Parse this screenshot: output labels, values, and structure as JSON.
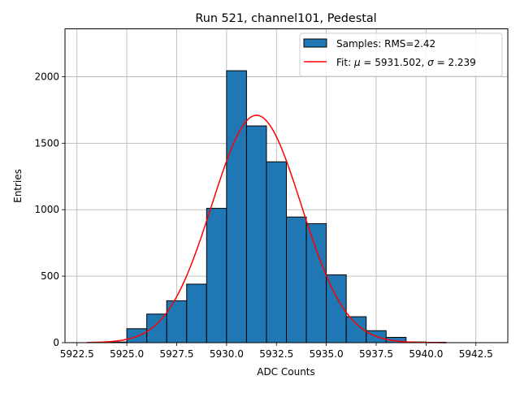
{
  "chart_data": {
    "type": "bar",
    "title": "Run 521, channel101, Pedestal",
    "xlabel": "ADC Counts",
    "ylabel": "Entries",
    "xlim": [
      5921.9,
      5944.1
    ],
    "ylim": [
      0,
      2360
    ],
    "xticks": [
      5922.5,
      5925.0,
      5927.5,
      5930.0,
      5932.5,
      5935.0,
      5937.5,
      5940.0,
      5942.5
    ],
    "xtick_labels": [
      "5922.5",
      "5925.0",
      "5927.5",
      "5930.0",
      "5932.5",
      "5935.0",
      "5937.5",
      "5940.0",
      "5942.5"
    ],
    "yticks": [
      0,
      500,
      1000,
      1500,
      2000
    ],
    "ytick_labels": [
      "0",
      "500",
      "1000",
      "1500",
      "2000"
    ],
    "grid": true,
    "legend_position": "top-right",
    "bins": {
      "edges": [
        5923,
        5924,
        5925,
        5926,
        5927,
        5928,
        5929,
        5930,
        5931,
        5932,
        5933,
        5934,
        5935,
        5936,
        5937,
        5938,
        5939,
        5940,
        5941
      ],
      "counts": [
        0,
        5,
        105,
        215,
        315,
        440,
        1010,
        2045,
        1630,
        1360,
        945,
        895,
        510,
        195,
        90,
        40,
        5,
        3
      ]
    },
    "series": [
      {
        "name": "Samples: RMS=2.42",
        "kind": "histogram",
        "color": "#1f77b4"
      },
      {
        "name": "Fit: μ = 5931.502, σ = 2.239",
        "kind": "gaussian-fit",
        "color": "#ff0000",
        "mu": 5931.502,
        "sigma": 2.239,
        "amplitude": 1710,
        "x_range": [
          5923,
          5941
        ]
      }
    ],
    "legend": {
      "hist_prefix": "Samples: RMS=2.42",
      "fit_prefix": "Fit: ",
      "fit_mu_symbol": "μ",
      "fit_mu_value": " = 5931.502, ",
      "fit_sigma_symbol": "σ",
      "fit_sigma_value": " = 2.239"
    }
  }
}
